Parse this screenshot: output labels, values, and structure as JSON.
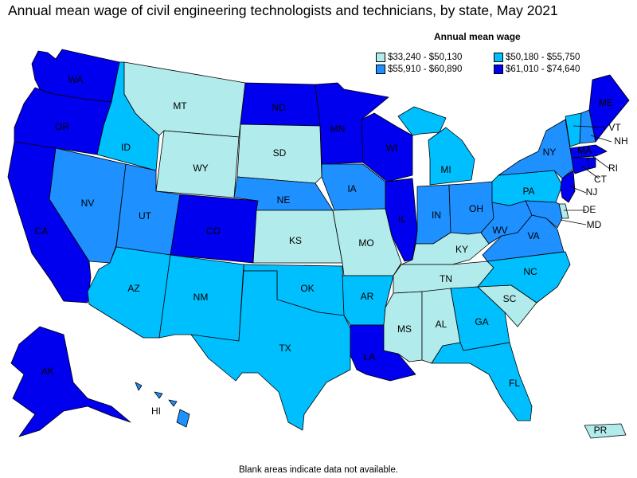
{
  "title": "Annual mean wage of civil engineering technologists and technicians, by state, May 2021",
  "legend": {
    "title": "Annual mean wage",
    "items": [
      {
        "key": "c1",
        "label": "$33,240 - $50,130",
        "color": "#b2ebeb"
      },
      {
        "key": "c3",
        "label": "$50,180 - $55,750",
        "color": "#00bfff"
      },
      {
        "key": "c2",
        "label": "$55,910 - $60,890",
        "color": "#1e90ff"
      },
      {
        "key": "c4",
        "label": "$61,010 - $74,640",
        "color": "#0000ee"
      }
    ]
  },
  "footnote": "Blank areas indicate data not available.",
  "states": [
    {
      "abbr": "WA",
      "class": "c4"
    },
    {
      "abbr": "OR",
      "class": "c4"
    },
    {
      "abbr": "CA",
      "class": "c4"
    },
    {
      "abbr": "ID",
      "class": "c3"
    },
    {
      "abbr": "NV",
      "class": "c2"
    },
    {
      "abbr": "MT",
      "class": "c1"
    },
    {
      "abbr": "WY",
      "class": "c1"
    },
    {
      "abbr": "UT",
      "class": "c2"
    },
    {
      "abbr": "AZ",
      "class": "c3"
    },
    {
      "abbr": "CO",
      "class": "c4"
    },
    {
      "abbr": "NM",
      "class": "c3"
    },
    {
      "abbr": "ND",
      "class": "c4"
    },
    {
      "abbr": "SD",
      "class": "c1"
    },
    {
      "abbr": "NE",
      "class": "c2"
    },
    {
      "abbr": "KS",
      "class": "c1"
    },
    {
      "abbr": "OK",
      "class": "c3"
    },
    {
      "abbr": "TX",
      "class": "c3"
    },
    {
      "abbr": "MN",
      "class": "c4"
    },
    {
      "abbr": "IA",
      "class": "c2"
    },
    {
      "abbr": "MO",
      "class": "c1"
    },
    {
      "abbr": "AR",
      "class": "c3"
    },
    {
      "abbr": "LA",
      "class": "c4"
    },
    {
      "abbr": "WI",
      "class": "c4"
    },
    {
      "abbr": "IL",
      "class": "c4"
    },
    {
      "abbr": "MI",
      "class": "c3"
    },
    {
      "abbr": "IN",
      "class": "c2"
    },
    {
      "abbr": "OH",
      "class": "c2"
    },
    {
      "abbr": "KY",
      "class": "c1"
    },
    {
      "abbr": "TN",
      "class": "c1"
    },
    {
      "abbr": "MS",
      "class": "c1"
    },
    {
      "abbr": "AL",
      "class": "c1"
    },
    {
      "abbr": "GA",
      "class": "c3"
    },
    {
      "abbr": "FL",
      "class": "c3"
    },
    {
      "abbr": "SC",
      "class": "c1"
    },
    {
      "abbr": "NC",
      "class": "c3"
    },
    {
      "abbr": "VA",
      "class": "c2"
    },
    {
      "abbr": "WV",
      "class": "c2"
    },
    {
      "abbr": "PA",
      "class": "c3"
    },
    {
      "abbr": "NY",
      "class": "c2"
    },
    {
      "abbr": "VT",
      "class": "c3"
    },
    {
      "abbr": "NH",
      "class": "c2"
    },
    {
      "abbr": "ME",
      "class": "c4"
    },
    {
      "abbr": "MA",
      "class": "c4"
    },
    {
      "abbr": "RI",
      "class": "c4"
    },
    {
      "abbr": "CT",
      "class": "c4"
    },
    {
      "abbr": "NJ",
      "class": "c4"
    },
    {
      "abbr": "DE",
      "class": "c1"
    },
    {
      "abbr": "MD",
      "class": "c2"
    },
    {
      "abbr": "AK",
      "class": "c4"
    },
    {
      "abbr": "HI",
      "class": "c2"
    },
    {
      "abbr": "PR",
      "class": "c1"
    }
  ]
}
